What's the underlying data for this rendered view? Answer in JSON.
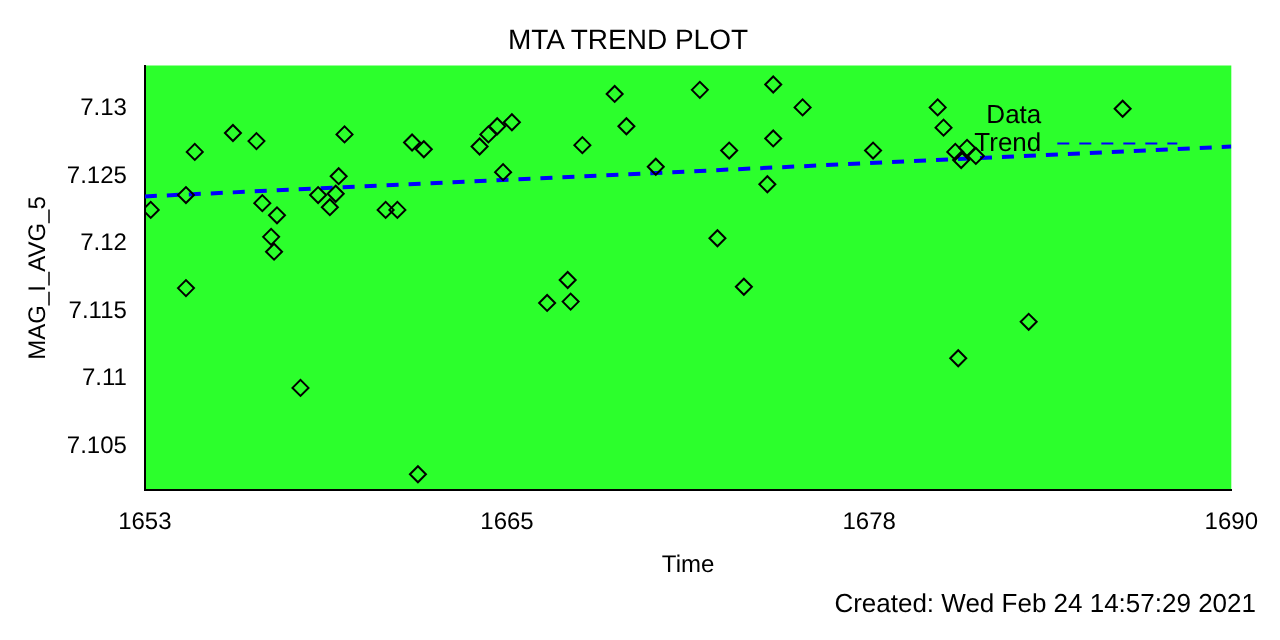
{
  "chart_data": {
    "type": "scatter",
    "title": "MTA TREND PLOT",
    "xlabel": "Time",
    "ylabel": "MAG_I_AVG_5",
    "xlim": [
      1653,
      1690
    ],
    "xticks": [
      1653,
      {
        "value": 1665.333,
        "label": "1665"
      },
      {
        "value": 1677.667,
        "label": "1678"
      },
      1690
    ],
    "ylim": [
      7.1017,
      7.1332
    ],
    "yticks": [
      7.105,
      7.11,
      7.115,
      7.12,
      7.125,
      7.13
    ],
    "legend": "top right",
    "grid": false,
    "annotations": [
      "Created: Wed Feb 24 14:57:29 2021"
    ],
    "series": [
      {
        "name": "Data",
        "type": "scatter",
        "color": "#000000",
        "marker": "diamond",
        "x": [
          1653.2,
          1654.4,
          1654.4,
          1654.7,
          1656.0,
          1656.8,
          1657.0,
          1657.5,
          1657.3,
          1657.4,
          1658.3,
          1658.9,
          1659.3,
          1659.5,
          1659.6,
          1659.8,
          1661.2,
          1661.6,
          1662.1,
          1662.5,
          1662.3,
          1664.4,
          1664.7,
          1665.0,
          1665.5,
          1665.2,
          1666.7,
          1667.4,
          1667.5,
          1667.9,
          1669.0,
          1669.4,
          1670.4,
          1671.9,
          1674.4,
          1675.4,
          1672.9,
          1674.4,
          1674.2,
          1672.5,
          1673.4,
          1677.8,
          1680.0,
          1680.2,
          1680.6,
          1680.8,
          1681.0,
          1681.3,
          1680.7,
          1683.1,
          1686.3
        ],
        "values": [
          7.1225,
          7.1236,
          7.1167,
          7.1268,
          7.1282,
          7.1276,
          7.123,
          7.1221,
          7.1205,
          7.1194,
          7.1093,
          7.1236,
          7.1227,
          7.1237,
          7.125,
          7.1281,
          7.1225,
          7.1225,
          7.1275,
          7.127,
          7.1029,
          7.1272,
          7.1281,
          7.1287,
          7.129,
          7.1253,
          7.1156,
          7.1173,
          7.1157,
          7.1273,
          7.1311,
          7.1287,
          7.1257,
          7.1314,
          7.1318,
          7.1301,
          7.1269,
          7.1278,
          7.1244,
          7.1204,
          7.1168,
          7.1269,
          7.1301,
          7.1286,
          7.1268,
          7.1262,
          7.1271,
          7.1265,
          7.1115,
          7.1142,
          7.13
        ]
      },
      {
        "name": "Trend",
        "type": "line",
        "color": "#0000ff",
        "line_style": "dashed",
        "x": [
          1653,
          1690
        ],
        "values": [
          7.1235,
          7.1272
        ]
      }
    ]
  }
}
